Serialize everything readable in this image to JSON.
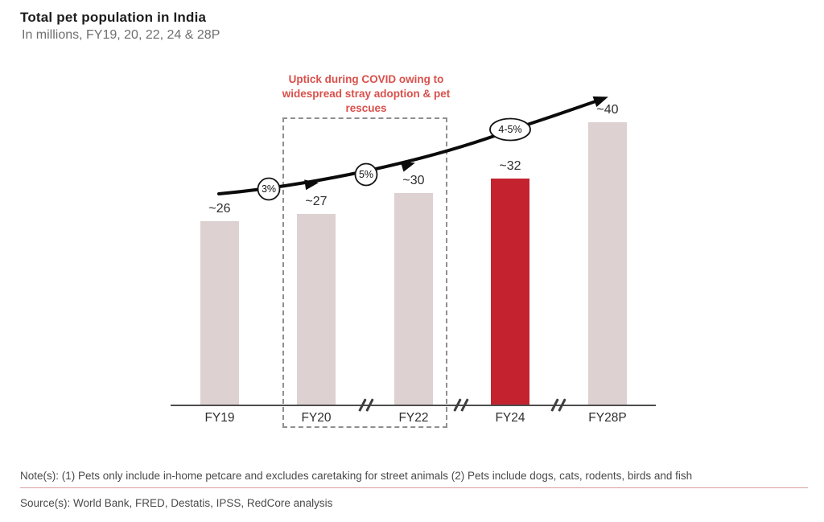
{
  "header": {
    "title": "Total pet population in India",
    "subtitle": "In millions, FY19, 20, 22, 24 & 28P"
  },
  "chart_data": {
    "type": "bar",
    "title": "Total pet population in India",
    "unit": "millions",
    "categories": [
      "FY19",
      "FY20",
      "FY22",
      "FY24",
      "FY28P"
    ],
    "values": [
      26,
      27,
      30,
      32,
      40
    ],
    "value_labels": [
      "~26",
      "~27",
      "~30",
      "~32",
      "~40"
    ],
    "highlighted_category": "FY24",
    "colors": {
      "bar_default": "#ddd1d1",
      "bar_highlight": "#c4222f",
      "annotation_red": "#d9504b",
      "trend_line": "#0b0b0b"
    },
    "growth_annotations": [
      {
        "label": "3%",
        "between": [
          "FY19",
          "FY20"
        ]
      },
      {
        "label": "5%",
        "between": [
          "FY20",
          "FY22"
        ]
      },
      {
        "label": "4-5%",
        "between": [
          "FY24",
          "FY28P"
        ]
      }
    ],
    "covid_annotation": {
      "lines": [
        "Uptick during COVID owing to",
        "widespread stray adoption & pet",
        "rescues"
      ],
      "boxed_categories": [
        "FY20",
        "FY22"
      ]
    },
    "axis_breaks_between": [
      [
        "FY20",
        "FY22"
      ],
      [
        "FY22",
        "FY24"
      ],
      [
        "FY24",
        "FY28P"
      ]
    ],
    "trend_line": true,
    "ylim": [
      0,
      45
    ],
    "grid": false,
    "legend": false
  },
  "footer": {
    "notes": "Note(s): (1) Pets only include in-home petcare and excludes caretaking for street animals (2) Pets include dogs, cats, rodents, birds and fish",
    "sources": "Source(s): World Bank, FRED,  Destatis, IPSS, RedCore analysis"
  }
}
